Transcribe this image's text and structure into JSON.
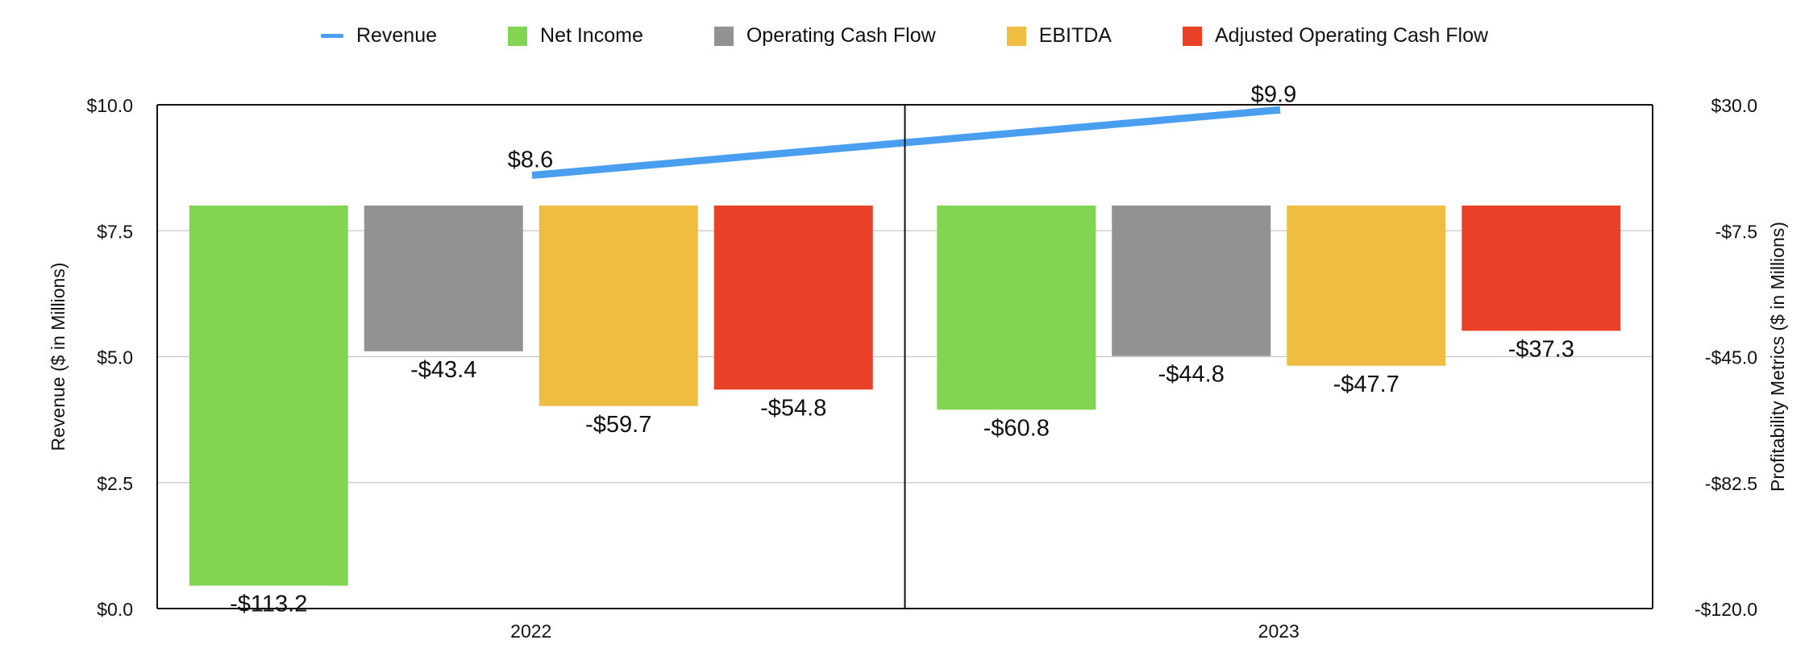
{
  "chart_data": {
    "type": "bar",
    "categories": [
      "2022",
      "2023"
    ],
    "series": [
      {
        "name": "Net Income",
        "color": "#82d552",
        "values": [
          -113.2,
          -60.8
        ],
        "labels": [
          "-$113.2",
          "-$60.8"
        ]
      },
      {
        "name": "Operating Cash Flow",
        "color": "#929292",
        "values": [
          -43.4,
          -44.8
        ],
        "labels": [
          "-$43.4",
          "-$44.8"
        ]
      },
      {
        "name": "EBITDA",
        "color": "#efbd41",
        "values": [
          -59.7,
          -47.7
        ],
        "labels": [
          "-$59.7",
          "-$47.7"
        ]
      },
      {
        "name": "Adjusted Operating Cash Flow",
        "color": "#e94127",
        "values": [
          -54.8,
          -37.3
        ],
        "labels": [
          "-$54.8",
          "-$37.3"
        ]
      }
    ],
    "line_series": {
      "name": "Revenue",
      "color": "#4a9ef0",
      "values": [
        8.6,
        9.9
      ],
      "labels": [
        "$8.6",
        "$9.9"
      ]
    },
    "y_left": {
      "label": "Revenue ($ in Millions)",
      "range": [
        0,
        10
      ],
      "ticks": [
        0,
        2.5,
        5,
        7.5,
        10
      ],
      "tick_labels": [
        "$0.0",
        "$2.5",
        "$5.0",
        "$7.5",
        "$10.0"
      ]
    },
    "y_right": {
      "label": "Profitability Metrics ($ in Millions)",
      "range": [
        -120,
        30
      ],
      "ticks": [
        -120,
        -82.5,
        -45,
        -7.5,
        30
      ],
      "tick_labels": [
        "-$120.0",
        "-$82.5",
        "-$45.0",
        "-$7.5",
        "$30.0"
      ],
      "bar_baseline": 0
    },
    "grid": true,
    "legend_position": "top-center"
  },
  "legend": {
    "items": [
      {
        "label": "Revenue",
        "kind": "line",
        "color": "#4a9ef0"
      },
      {
        "label": "Net Income",
        "kind": "box",
        "color": "#82d552"
      },
      {
        "label": "Operating Cash Flow",
        "kind": "box",
        "color": "#929292"
      },
      {
        "label": "EBITDA",
        "kind": "box",
        "color": "#efbd41"
      },
      {
        "label": "Adjusted Operating Cash Flow",
        "kind": "box",
        "color": "#e94127"
      }
    ]
  }
}
